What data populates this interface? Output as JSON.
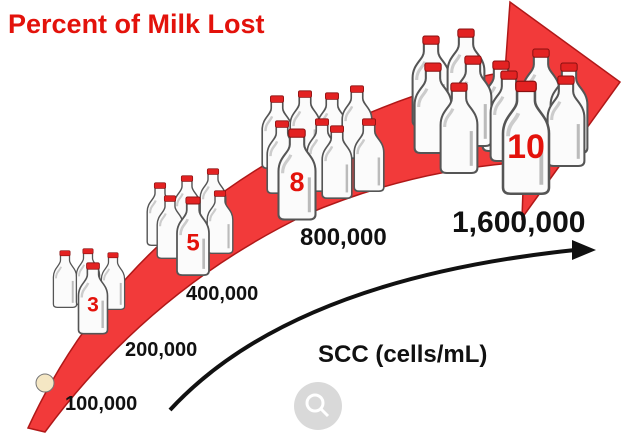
{
  "title": "Percent of Milk Lost",
  "axis_label": "SCC (cells/mL)",
  "start_label": "100,000",
  "groups": [
    {
      "percent": 3,
      "scc": "200,000"
    },
    {
      "percent": 5,
      "scc": "400,000"
    },
    {
      "percent": 8,
      "scc": "800,000"
    },
    {
      "percent": 10,
      "scc": "1,600,000"
    }
  ]
}
